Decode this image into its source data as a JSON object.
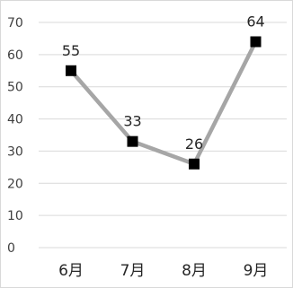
{
  "chart_data": {
    "type": "line",
    "categories": [
      "6月",
      "7月",
      "8月",
      "9月"
    ],
    "series": [
      {
        "values": [
          55,
          33,
          26,
          64
        ]
      }
    ],
    "data_labels": [
      "55",
      "33",
      "26",
      "64"
    ],
    "y_ticks": [
      "0",
      "10",
      "20",
      "30",
      "40",
      "50",
      "60",
      "70"
    ],
    "ylim": [
      0,
      70
    ],
    "grid": true,
    "legend": "none",
    "line_color": "#a6a6a6",
    "marker_color": "#000000",
    "marker": "square",
    "title": "",
    "xlabel": "",
    "ylabel": ""
  }
}
